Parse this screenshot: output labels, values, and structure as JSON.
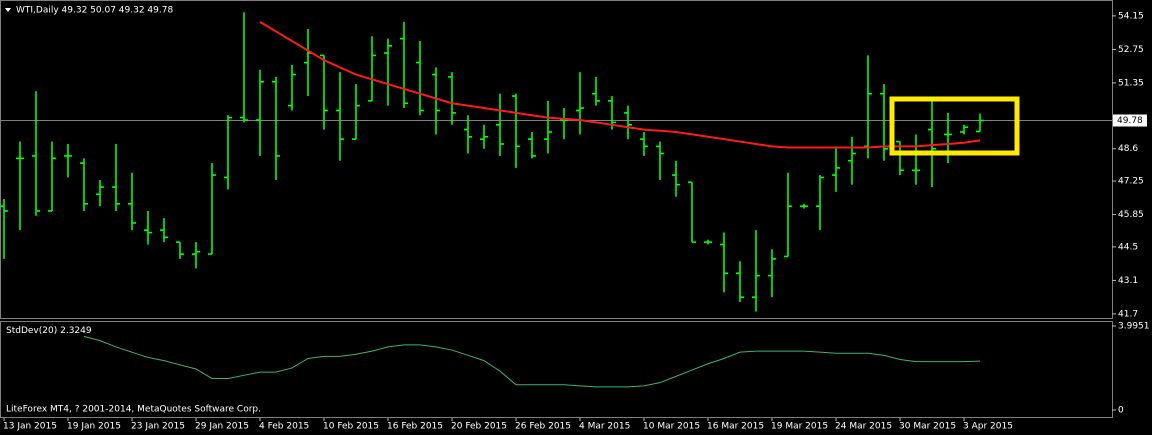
{
  "chart_data": [
    {
      "type": "ohlc",
      "title": "WTI,Daily 49.32 50.07 49.32 49.78",
      "color": "#00ff00",
      "categories": [
        "13 Jan 2015",
        null,
        null,
        null,
        "19 Jan 2015",
        null,
        null,
        null,
        "23 Jan 2015",
        null,
        null,
        null,
        "29 Jan 2015",
        null,
        null,
        null,
        "4 Feb 2015",
        null,
        null,
        null,
        "10 Feb 2015",
        null,
        null,
        null,
        "16 Feb 2015",
        null,
        null,
        null,
        "20 Feb 2015",
        null,
        null,
        null,
        "26 Feb 2015",
        null,
        null,
        null,
        "4 Mar 2015",
        null,
        null,
        null,
        "10 Mar 2015",
        null,
        null,
        null,
        "16 Mar 2015",
        null,
        null,
        null,
        "19 Mar 2015",
        null,
        null,
        null,
        "24 Mar 2015",
        null,
        null,
        null,
        "30 Mar 2015",
        null,
        null,
        null,
        "3 Apr 2015",
        null
      ],
      "open": [
        46.2,
        48.2,
        48.3,
        46.0,
        48.3,
        48.0,
        46.7,
        47.0,
        46.3,
        45.2,
        45.2,
        44.7,
        44.2,
        44.2,
        47.4,
        49.9,
        49.8,
        51.4,
        50.4,
        52.2,
        52.5,
        50.2,
        49.0,
        50.6,
        52.6,
        53.2,
        52.2,
        51.7,
        51.6,
        49.4,
        49.0,
        49.6,
        50.8,
        49.0,
        49.0,
        49.8,
        50.2,
        50.9,
        50.6,
        50.1,
        49.0,
        48.7,
        47.5,
        47.2,
        44.7,
        44.6,
        43.4,
        42.4,
        43.3,
        44.1,
        46.2,
        46.2,
        47.5,
        48.1,
        48.7,
        50.9,
        48.9,
        47.7,
        49.4,
        49.2,
        49.3,
        49.32
      ],
      "high": [
        46.5,
        48.9,
        51.0,
        48.9,
        48.8,
        48.2,
        47.3,
        48.8,
        47.6,
        46.0,
        45.7,
        44.7,
        44.7,
        48.0,
        50.0,
        54.3,
        51.9,
        51.6,
        52.1,
        53.6,
        52.5,
        51.8,
        51.3,
        53.3,
        53.2,
        53.9,
        53.1,
        52.0,
        51.8,
        50.0,
        49.6,
        50.9,
        50.9,
        49.3,
        50.6,
        50.3,
        51.8,
        51.6,
        50.8,
        50.4,
        49.3,
        48.9,
        48.1,
        47.2,
        44.8,
        45.1,
        43.9,
        45.2,
        44.4,
        47.6,
        46.3,
        47.5,
        48.7,
        49.1,
        52.5,
        51.3,
        48.9,
        49.2,
        50.6,
        50.1,
        49.6,
        50.07
      ],
      "low": [
        44.0,
        45.2,
        45.8,
        46.0,
        47.4,
        46.0,
        46.2,
        46.0,
        45.2,
        44.6,
        44.7,
        44.0,
        43.6,
        44.2,
        46.9,
        49.7,
        48.3,
        47.3,
        50.2,
        50.8,
        49.4,
        48.1,
        49.0,
        50.6,
        50.4,
        50.3,
        50.0,
        49.2,
        49.6,
        48.4,
        48.6,
        48.3,
        47.8,
        48.2,
        48.4,
        49.0,
        49.2,
        50.4,
        49.4,
        49.0,
        48.3,
        47.3,
        46.6,
        44.7,
        44.6,
        42.6,
        42.2,
        41.8,
        42.4,
        44.1,
        46.1,
        45.2,
        46.8,
        47.1,
        48.2,
        48.1,
        47.5,
        47.1,
        47.0,
        48.0,
        49.2,
        49.32
      ],
      "close": [
        46.0,
        48.2,
        46.0,
        48.2,
        48.3,
        46.3,
        47.0,
        46.3,
        45.5,
        45.1,
        44.9,
        44.2,
        44.3,
        47.5,
        49.9,
        49.8,
        51.4,
        48.3,
        51.7,
        52.6,
        50.2,
        49.0,
        50.4,
        52.5,
        52.9,
        50.5,
        50.2,
        50.2,
        50.1,
        49.1,
        49.1,
        48.8,
        48.7,
        48.3,
        49.3,
        49.8,
        50.3,
        50.6,
        49.7,
        49.6,
        48.7,
        48.4,
        47.1,
        44.7,
        44.7,
        43.4,
        42.4,
        43.3,
        44.0,
        46.2,
        46.2,
        47.4,
        47.8,
        48.4,
        50.9,
        48.6,
        47.7,
        47.7,
        48.6,
        49.2,
        49.5,
        49.78
      ],
      "ma_color": "#ff1a1a",
      "ma_values": [
        null,
        null,
        null,
        null,
        null,
        null,
        null,
        null,
        null,
        null,
        null,
        null,
        null,
        null,
        null,
        null,
        53.9,
        53.5,
        53.1,
        52.7,
        52.3,
        52.0,
        51.7,
        51.5,
        51.3,
        51.1,
        50.9,
        50.7,
        50.5,
        50.4,
        50.3,
        50.2,
        50.1,
        50.0,
        49.9,
        49.85,
        49.8,
        49.7,
        49.6,
        49.5,
        49.4,
        49.35,
        49.3,
        49.2,
        49.1,
        49.0,
        48.9,
        48.8,
        48.7,
        48.65,
        48.65,
        48.65,
        48.65,
        48.65,
        48.65,
        48.7,
        48.7,
        48.7,
        48.75,
        48.8,
        48.85,
        48.95
      ],
      "current_price": 49.78,
      "ylim": [
        41.53,
        54.73
      ],
      "yticks": [
        54.15,
        52.75,
        51.35,
        48.6,
        47.25,
        45.85,
        44.5,
        43.1,
        41.7
      ]
    },
    {
      "type": "line",
      "title": "StdDev(20)",
      "color": "#3cb371",
      "values": [
        null,
        null,
        null,
        null,
        null,
        3.5,
        3.3,
        3.0,
        2.75,
        2.5,
        2.35,
        2.15,
        1.95,
        1.5,
        1.5,
        1.65,
        1.8,
        1.8,
        2.0,
        2.45,
        2.55,
        2.55,
        2.65,
        2.8,
        3.0,
        3.1,
        3.1,
        3.0,
        2.85,
        2.6,
        2.35,
        1.85,
        1.2,
        1.2,
        1.2,
        1.2,
        1.15,
        1.1,
        1.1,
        1.1,
        1.15,
        1.3,
        1.6,
        1.9,
        2.2,
        2.45,
        2.75,
        2.8,
        2.8,
        2.8,
        2.8,
        2.75,
        2.7,
        2.7,
        2.7,
        2.6,
        2.4,
        2.3,
        2.3,
        2.3,
        2.3,
        2.3249
      ],
      "ylim": [
        -0.38,
        4.185
      ],
      "yticks": [
        3.9951,
        0
      ]
    }
  ],
  "footer": "LiteForex MT4, ? 2001-2014, MetaQuotes Software Corp."
}
